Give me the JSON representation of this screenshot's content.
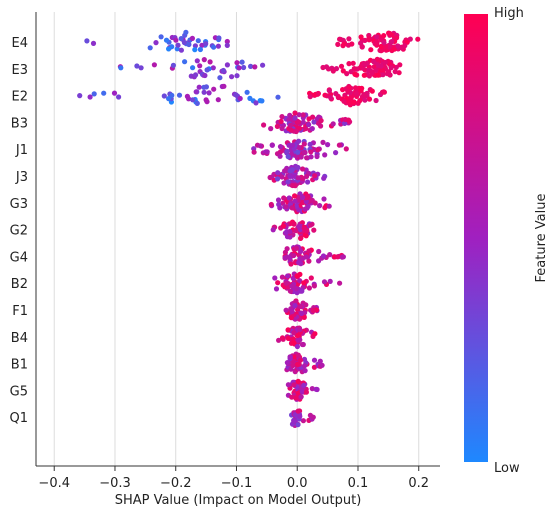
{
  "chart_data": {
    "type": "scatter",
    "subtype": "shap-beeswarm",
    "xlabel": "SHAP Value (Impact on Model Output)",
    "xlim": [
      -0.43,
      0.235
    ],
    "xticks": [
      -0.4,
      -0.3,
      -0.2,
      -0.1,
      0.0,
      0.1,
      0.2
    ],
    "xtick_labels": [
      "−0.4",
      "−0.3",
      "−0.2",
      "−0.1",
      "0.0",
      "0.1",
      "0.2"
    ],
    "grid": "vertical gridlines",
    "colorbar": {
      "label": "Feature Value",
      "high": "High",
      "low": "Low",
      "low_color": "#1e88ff",
      "mid_color": "#a020c0",
      "high_color": "#ff0052"
    },
    "features": [
      {
        "name": "E4",
        "clusters": [
          {
            "min": -0.37,
            "max": -0.09,
            "center": -0.18,
            "n": 42,
            "color_val": 0.3
          },
          {
            "min": 0.06,
            "max": 0.21,
            "center": 0.145,
            "n": 85,
            "color_val": 0.97
          }
        ]
      },
      {
        "name": "E3",
        "clusters": [
          {
            "min": -0.31,
            "max": -0.05,
            "center": -0.14,
            "n": 38,
            "color_val": 0.35
          },
          {
            "min": 0.04,
            "max": 0.18,
            "center": 0.13,
            "n": 80,
            "color_val": 0.95
          }
        ]
      },
      {
        "name": "E2",
        "clusters": [
          {
            "min": -0.385,
            "max": -0.03,
            "center": -0.13,
            "n": 45,
            "color_val": 0.3
          },
          {
            "min": 0.02,
            "max": 0.145,
            "center": 0.09,
            "n": 75,
            "color_val": 0.97
          }
        ]
      },
      {
        "name": "B3",
        "clusters": [
          {
            "min": -0.07,
            "max": 0.09,
            "center": 0.0,
            "n": 85,
            "color_val": 0.65
          }
        ]
      },
      {
        "name": "J1",
        "clusters": [
          {
            "min": -0.075,
            "max": 0.085,
            "center": 0.005,
            "n": 75,
            "color_val": 0.55
          }
        ]
      },
      {
        "name": "J3",
        "clusters": [
          {
            "min": -0.045,
            "max": 0.05,
            "center": -0.005,
            "n": 70,
            "color_val": 0.6
          }
        ]
      },
      {
        "name": "G3",
        "clusters": [
          {
            "min": -0.05,
            "max": 0.055,
            "center": 0.005,
            "n": 70,
            "color_val": 0.7
          }
        ]
      },
      {
        "name": "G2",
        "clusters": [
          {
            "min": -0.04,
            "max": 0.035,
            "center": 0.0,
            "n": 60,
            "color_val": 0.72
          }
        ]
      },
      {
        "name": "G4",
        "clusters": [
          {
            "min": -0.02,
            "max": 0.08,
            "center": 0.0,
            "n": 60,
            "color_val": 0.72
          }
        ]
      },
      {
        "name": "B2",
        "clusters": [
          {
            "min": -0.04,
            "max": 0.07,
            "center": -0.005,
            "n": 60,
            "color_val": 0.72
          }
        ]
      },
      {
        "name": "F1",
        "clusters": [
          {
            "min": -0.02,
            "max": 0.04,
            "center": 0.0,
            "n": 55,
            "color_val": 0.72
          }
        ]
      },
      {
        "name": "B4",
        "clusters": [
          {
            "min": -0.035,
            "max": 0.03,
            "center": 0.0,
            "n": 55,
            "color_val": 0.72
          }
        ]
      },
      {
        "name": "B1",
        "clusters": [
          {
            "min": -0.02,
            "max": 0.05,
            "center": 0.0,
            "n": 55,
            "color_val": 0.7
          }
        ]
      },
      {
        "name": "G5",
        "clusters": [
          {
            "min": -0.02,
            "max": 0.035,
            "center": 0.0,
            "n": 50,
            "color_val": 0.72
          }
        ]
      },
      {
        "name": "Q1",
        "clusters": [
          {
            "min": -0.01,
            "max": 0.03,
            "center": 0.0,
            "n": 30,
            "color_val": 0.6
          }
        ]
      }
    ]
  }
}
